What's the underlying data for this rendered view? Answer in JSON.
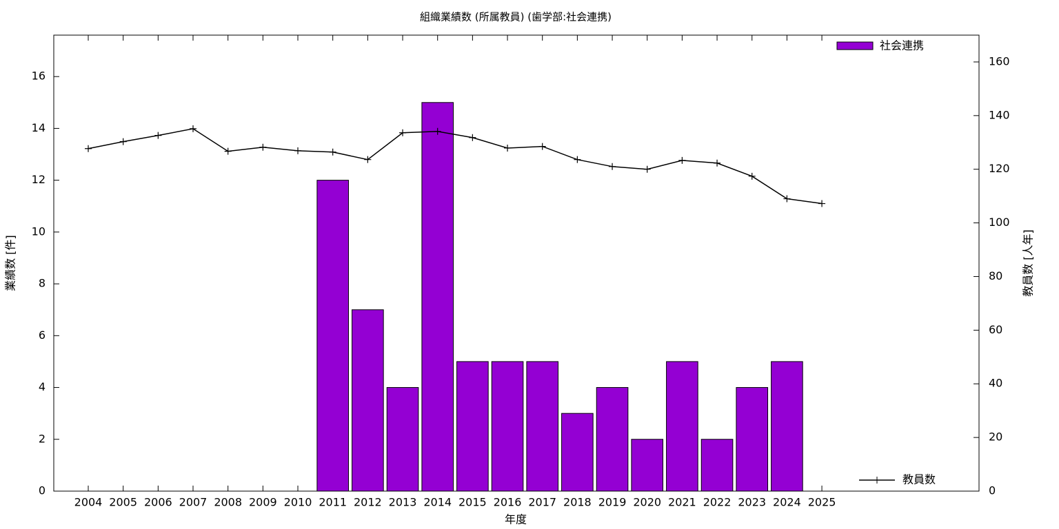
{
  "chart_data": {
    "type": "combo",
    "title": "組織業績数 (所属教員) (歯学部:社会連携)",
    "x_label": "年度",
    "y_label": "業績数 [件]",
    "y2_label": "教員数 [人年]",
    "categories": [
      "2004",
      "2005",
      "2006",
      "2007",
      "2008",
      "2009",
      "2010",
      "2011",
      "2012",
      "2013",
      "2014",
      "2015",
      "2016",
      "2017",
      "2018",
      "2019",
      "2020",
      "2021",
      "2022",
      "2023",
      "2024",
      "2025"
    ],
    "series": [
      {
        "name": "社会連携",
        "type": "bar",
        "color": "#9400d3",
        "values": [
          null,
          null,
          null,
          null,
          null,
          null,
          null,
          12,
          7,
          4,
          15,
          5,
          5,
          5,
          3,
          4,
          2,
          5,
          2,
          4,
          5,
          null
        ]
      },
      {
        "name": "教員数",
        "type": "line",
        "axis": "y2",
        "color": "#000000",
        "values": [
          127.7,
          130.3,
          132.6,
          135.1,
          126.7,
          128.2,
          126.9,
          126.4,
          123.6,
          133.6,
          134.1,
          131.8,
          127.9,
          128.5,
          123.6,
          121.0,
          120.0,
          123.3,
          122.3,
          117.4,
          109.0,
          107.2
        ]
      }
    ],
    "ylim": [
      0,
      17.6
    ],
    "yticks": [
      0,
      2,
      4,
      6,
      8,
      10,
      12,
      14,
      16
    ],
    "y2lim": [
      0,
      170
    ],
    "y2ticks": [
      0,
      20,
      40,
      60,
      80,
      100,
      120,
      140,
      160
    ],
    "grid": false
  }
}
